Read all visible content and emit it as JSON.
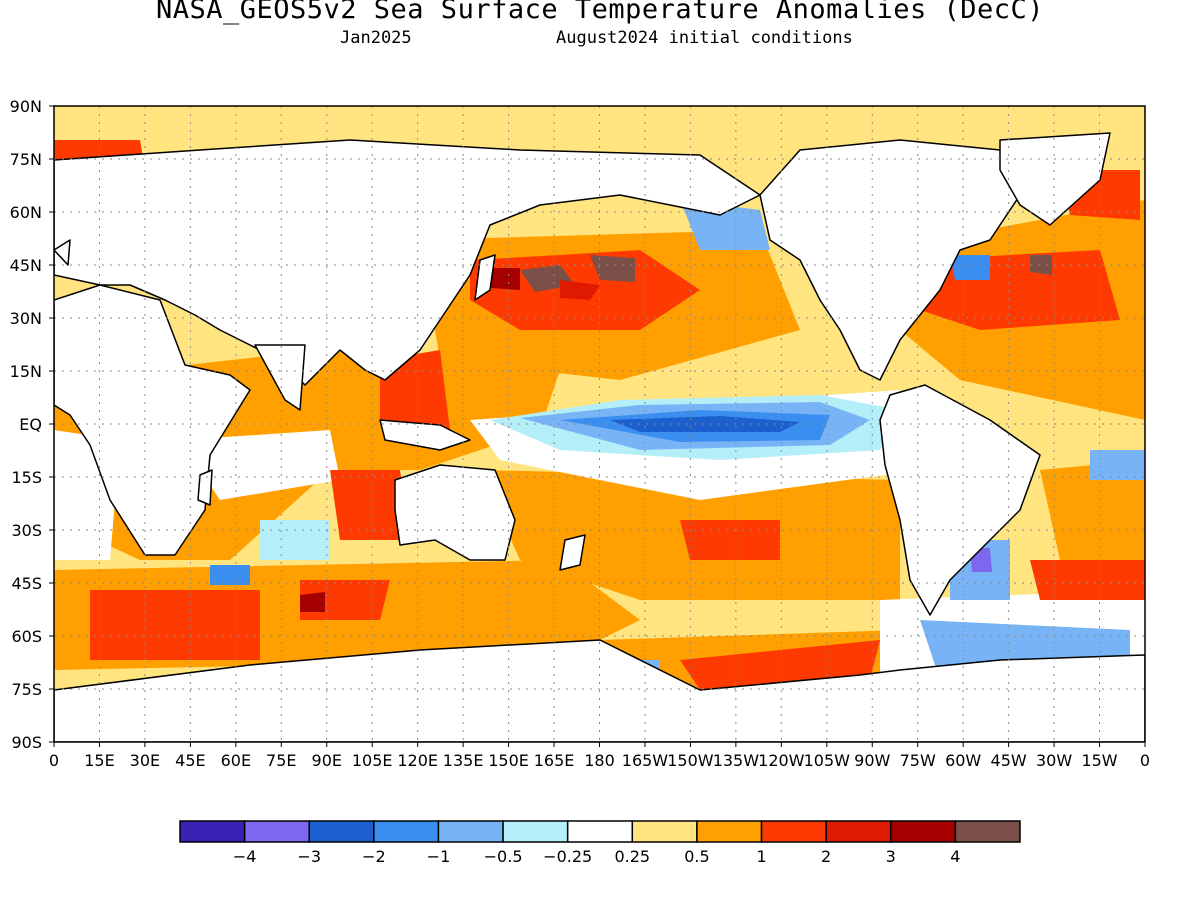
{
  "title": "NASA_GEOS5v2 Sea Surface Temperature Anomalies (DecC)",
  "subtitle_left": "Jan2025",
  "subtitle_right": "August2024 initial conditions",
  "lat_ticks": [
    "90N",
    "75N",
    "60N",
    "45N",
    "30N",
    "15N",
    "EQ",
    "15S",
    "30S",
    "45S",
    "60S",
    "75S",
    "90S"
  ],
  "lon_ticks": [
    "0",
    "15E",
    "30E",
    "45E",
    "60E",
    "75E",
    "90E",
    "105E",
    "120E",
    "135E",
    "150E",
    "165E",
    "180",
    "165W",
    "150W",
    "135W",
    "120W",
    "105W",
    "90W",
    "75W",
    "60W",
    "45W",
    "30W",
    "15W",
    "0"
  ],
  "colorbar": {
    "colors": [
      "#3c22b4",
      "#7b68ee",
      "#1c5fcf",
      "#3a8ef0",
      "#78b4f5",
      "#b4eef8",
      "#ffffff",
      "#ffe480",
      "#ffa000",
      "#ff3a00",
      "#e01a00",
      "#a50000",
      "#7a5048"
    ],
    "labels": [
      "−4",
      "−3",
      "−2",
      "−1",
      "−0.5",
      "−0.25",
      "0.25",
      "0.5",
      "1",
      "2",
      "3",
      "4"
    ]
  },
  "map": {
    "land_color": "#ffffff",
    "coast_color": "#000000",
    "ocean_base_color": "#ffe480",
    "grid_dotted": true
  }
}
